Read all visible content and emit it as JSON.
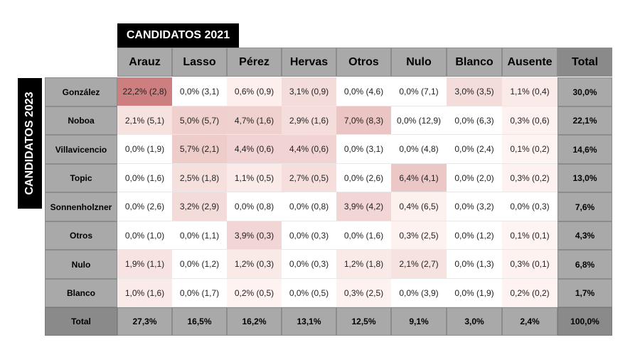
{
  "titles": {
    "columns_title": "CANDIDATOS 2021",
    "rows_title": "CANDIDATOS 2023"
  },
  "chart_data": {
    "type": "table",
    "col_headers": [
      "Arauz",
      "Lasso",
      "Pérez",
      "Hervas",
      "Otros",
      "Nulo",
      "Blanco",
      "Ausente"
    ],
    "total_label": "Total",
    "rows": [
      {
        "label": "González",
        "values": [
          22.2,
          0.0,
          0.6,
          3.1,
          0.0,
          0.0,
          3.0,
          1.1
        ],
        "cells": [
          "22,2% (2,8)",
          "0,0% (3,1)",
          "0,6% (0,9)",
          "3,1% (0,9)",
          "0,0% (4,6)",
          "0,0% (7,1)",
          "3,0% (3,5)",
          "1,1% (0,4)"
        ],
        "total": "30,0%"
      },
      {
        "label": "Noboa",
        "values": [
          2.1,
          5.0,
          4.7,
          2.9,
          7.0,
          0.0,
          0.0,
          0.3
        ],
        "cells": [
          "2,1% (5,1)",
          "5,0% (5,7)",
          "4,7% (1,6)",
          "2,9% (1,6)",
          "7,0% (8,3)",
          "0,0% (12,9)",
          "0,0% (6,3)",
          "0,3% (0,6)"
        ],
        "total": "22,1%"
      },
      {
        "label": "Villavicencio",
        "values": [
          0.0,
          5.7,
          4.4,
          4.4,
          0.0,
          0.0,
          0.0,
          0.1
        ],
        "cells": [
          "0,0% (1,9)",
          "5,7% (2,1)",
          "4,4% (0,6)",
          "4,4% (0,6)",
          "0,0% (3,1)",
          "0,0% (4,8)",
          "0,0% (2,4)",
          "0,1% (0,2)"
        ],
        "total": "14,6%"
      },
      {
        "label": "Topic",
        "values": [
          0.0,
          2.5,
          1.1,
          2.7,
          0.0,
          6.4,
          0.0,
          0.3
        ],
        "cells": [
          "0,0% (1,6)",
          "2,5% (1,8)",
          "1,1% (0,5)",
          "2,7% (0,5)",
          "0,0% (2,6)",
          "6,4% (4,1)",
          "0,0% (2,0)",
          "0,3% (0,2)"
        ],
        "total": "13,0%"
      },
      {
        "label": "Sonnenholzner",
        "values": [
          0.0,
          3.2,
          0.0,
          0.0,
          3.9,
          0.4,
          0.0,
          0.0
        ],
        "cells": [
          "0,0% (2,6)",
          "3,2% (2,9)",
          "0,0% (0,8)",
          "0,0% (0,8)",
          "3,9% (4,2)",
          "0,4% (6,5)",
          "0,0% (3,2)",
          "0,0% (0,3)"
        ],
        "total": "7,6%"
      },
      {
        "label": "Otros",
        "values": [
          0.0,
          0.0,
          3.9,
          0.0,
          0.0,
          0.3,
          0.0,
          0.1
        ],
        "cells": [
          "0,0% (1,0)",
          "0,0% (1,1)",
          "3,9% (0,3)",
          "0,0% (0,3)",
          "0,0% (1,6)",
          "0,3% (2,5)",
          "0,0% (1,2)",
          "0,1% (0,1)"
        ],
        "total": "4,3%"
      },
      {
        "label": "Nulo",
        "values": [
          1.9,
          0.0,
          1.2,
          0.0,
          1.2,
          2.1,
          0.0,
          0.3
        ],
        "cells": [
          "1,9% (1,1)",
          "0,0% (1,2)",
          "1,2% (0,3)",
          "0,0% (0,3)",
          "1,2% (1,8)",
          "2,1% (2,7)",
          "0,0% (1,3)",
          "0,3% (0,1)"
        ],
        "total": "6,8%"
      },
      {
        "label": "Blanco",
        "values": [
          1.0,
          0.0,
          0.2,
          0.0,
          0.3,
          0.0,
          0.0,
          0.2
        ],
        "cells": [
          "1,0% (1,6)",
          "0,0% (1,7)",
          "0,2% (0,5)",
          "0,0% (0,5)",
          "0,3% (2,5)",
          "0,0% (3,9)",
          "0,0% (1,9)",
          "0,2% (0,2)"
        ],
        "total": "1,7%"
      }
    ],
    "col_totals": [
      "27,3%",
      "16,5%",
      "16,2%",
      "13,1%",
      "12,5%",
      "9,1%",
      "3,0%",
      "2,4%"
    ],
    "grand_total": "100,0%",
    "heat_max": 22.2,
    "colors": {
      "heat_low": "#fff7f4",
      "heat_high": "#cd7f80",
      "header_bg": "#a9a9a9",
      "total_header_bg": "#8a8a8a"
    }
  }
}
